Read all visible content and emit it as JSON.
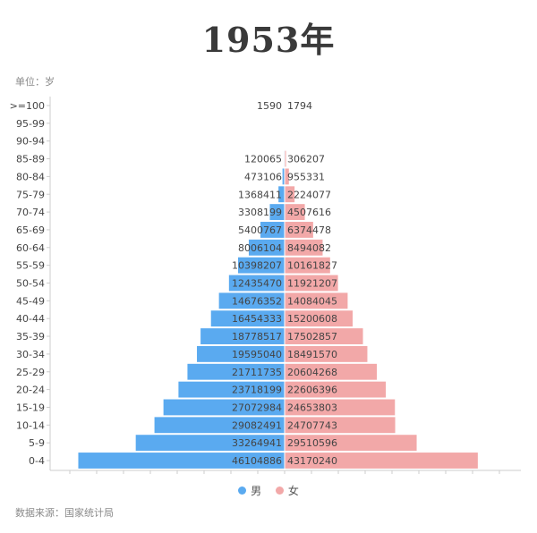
{
  "header": {
    "title": "1953年"
  },
  "unit_text": "单位：岁",
  "source_text": "数据来源：国家统计局",
  "legend": {
    "male_label": "男",
    "female_label": "女"
  },
  "colors": {
    "male": "#5aaaf0",
    "female": "#f2a8a8",
    "axis": "#cccccc",
    "text": "#444444"
  },
  "chart_data": {
    "type": "bar",
    "orientation": "horizontal-population-pyramid",
    "title": "1953年",
    "categories": [
      "0-4",
      "5-9",
      "10-14",
      "15-19",
      "20-24",
      "25-29",
      "30-34",
      "35-39",
      "40-44",
      "45-49",
      "50-54",
      "55-59",
      "60-64",
      "65-69",
      "70-74",
      "75-79",
      "80-84",
      "85-89",
      "90-94",
      "95-99",
      ">=100"
    ],
    "series": [
      {
        "name": "男",
        "values": [
          46104886,
          33264941,
          29082491,
          27072984,
          23718199,
          21711735,
          19595040,
          18778517,
          16454333,
          14676352,
          12435470,
          10398207,
          8006104,
          5400767,
          3308199,
          1368411,
          473106,
          120065,
          null,
          null,
          1590
        ]
      },
      {
        "name": "女",
        "values": [
          43170240,
          29510596,
          24707743,
          24653803,
          22606396,
          20604268,
          18491570,
          17502857,
          15200608,
          14084045,
          11921207,
          10161827,
          8494082,
          6374478,
          4507616,
          2224077,
          955331,
          306207,
          null,
          null,
          1794
        ]
      }
    ],
    "xlim": [
      -48000000,
      48000000
    ],
    "grid": false,
    "legend_position": "bottom-center"
  }
}
